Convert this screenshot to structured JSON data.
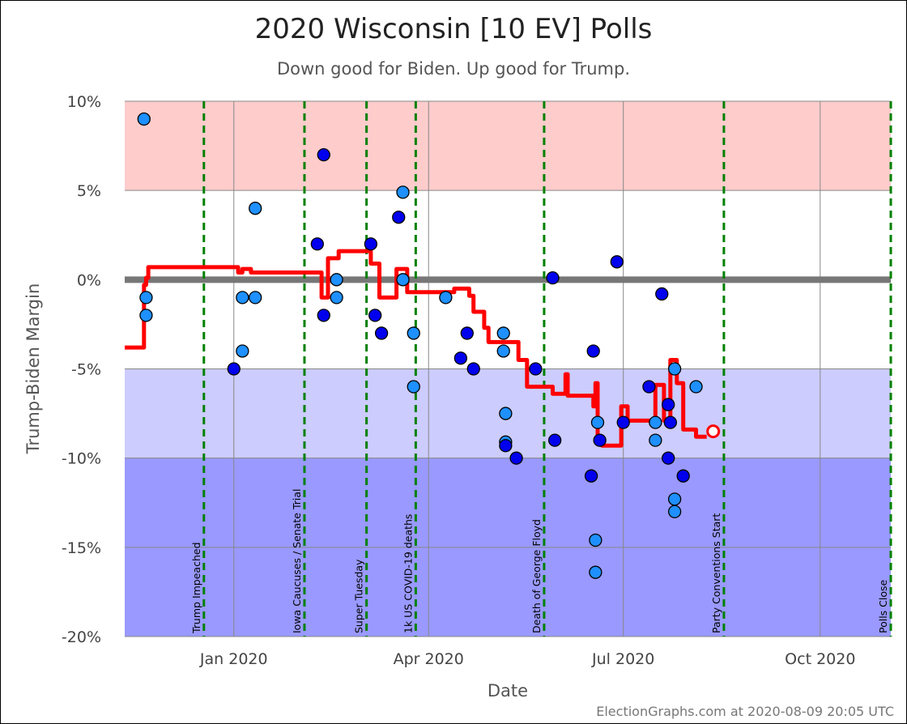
{
  "chart_data": {
    "type": "scatter",
    "title": "2020 Wisconsin [10 EV] Polls",
    "subtitle": "Down good for Biden. Up good for Trump.",
    "xlabel": "Date",
    "ylabel": "Trump-Biden Margin",
    "credit": "ElectionGraphs.com at 2020-08-09 20:05 UTC",
    "xlim": [
      "2019-11-11",
      "2020-11-03"
    ],
    "ylim": [
      -20,
      10
    ],
    "x_ticks": [
      {
        "date": "2020-01-01",
        "label": "Jan 2020"
      },
      {
        "date": "2020-04-01",
        "label": "Apr 2020"
      },
      {
        "date": "2020-07-01",
        "label": "Jul 2020"
      },
      {
        "date": "2020-10-01",
        "label": "Oct 2020"
      }
    ],
    "y_ticks": [
      {
        "value": 10,
        "label": "10%"
      },
      {
        "value": 5,
        "label": "5%"
      },
      {
        "value": 0,
        "label": "0%"
      },
      {
        "value": -5,
        "label": "-5%"
      },
      {
        "value": -10,
        "label": "-10%"
      },
      {
        "value": -15,
        "label": "-15%"
      },
      {
        "value": -20,
        "label": "-20%"
      }
    ],
    "bands": [
      {
        "from": 5,
        "to": 10,
        "color": "#ffcccc"
      },
      {
        "from": -5,
        "to": 5,
        "color": "#ffffff"
      },
      {
        "from": -10,
        "to": -5,
        "color": "#ccccff"
      },
      {
        "from": -20,
        "to": -10,
        "color": "#9999ff"
      }
    ],
    "colors": {
      "event_line": "#008000",
      "average_line": "#ff0000",
      "zero_line": "#777777",
      "poll_dark": "#0000ee",
      "poll_light": "#1e90ff",
      "grid": "#888888"
    },
    "events": [
      {
        "date": "2019-12-18",
        "label": "Trump Impeached"
      },
      {
        "date": "2020-02-03",
        "label": "Iowa Caucuses / Senate Trial"
      },
      {
        "date": "2020-03-03",
        "label": "Super Tuesday"
      },
      {
        "date": "2020-03-26",
        "label": "1k US COVID-19 deaths"
      },
      {
        "date": "2020-05-25",
        "label": "Death of George Floyd"
      },
      {
        "date": "2020-08-17",
        "label": "Party Conventions Start"
      },
      {
        "date": "2020-11-03",
        "label": "Polls Close"
      }
    ],
    "series": [
      {
        "name": "Trump-Biden Margin average",
        "type": "step",
        "points": [
          [
            "2019-11-11",
            -3.8
          ],
          [
            "2019-11-20",
            -3.8
          ],
          [
            "2019-11-20",
            -0.3
          ],
          [
            "2019-11-21",
            -0.3
          ],
          [
            "2019-11-21",
            0.1
          ],
          [
            "2019-11-22",
            0.1
          ],
          [
            "2019-11-22",
            0.7
          ],
          [
            "2020-01-03",
            0.7
          ],
          [
            "2020-01-03",
            0.4
          ],
          [
            "2020-01-05",
            0.4
          ],
          [
            "2020-01-05",
            0.6
          ],
          [
            "2020-01-09",
            0.6
          ],
          [
            "2020-01-09",
            0.4
          ],
          [
            "2020-02-11",
            0.4
          ],
          [
            "2020-02-11",
            -1.0
          ],
          [
            "2020-02-14",
            -1.0
          ],
          [
            "2020-02-14",
            1.2
          ],
          [
            "2020-02-19",
            1.2
          ],
          [
            "2020-02-19",
            1.6
          ],
          [
            "2020-03-05",
            1.6
          ],
          [
            "2020-03-05",
            0.9
          ],
          [
            "2020-03-09",
            0.9
          ],
          [
            "2020-03-09",
            -1.0
          ],
          [
            "2020-03-17",
            -1.0
          ],
          [
            "2020-03-17",
            0.6
          ],
          [
            "2020-03-22",
            0.6
          ],
          [
            "2020-03-22",
            -0.7
          ],
          [
            "2020-04-13",
            -0.7
          ],
          [
            "2020-04-13",
            -0.5
          ],
          [
            "2020-04-20",
            -0.5
          ],
          [
            "2020-04-20",
            -0.9
          ],
          [
            "2020-04-22",
            -0.9
          ],
          [
            "2020-04-22",
            -1.8
          ],
          [
            "2020-04-27",
            -1.8
          ],
          [
            "2020-04-27",
            -2.7
          ],
          [
            "2020-04-29",
            -2.7
          ],
          [
            "2020-04-29",
            -3.5
          ],
          [
            "2020-05-13",
            -3.5
          ],
          [
            "2020-05-13",
            -4.5
          ],
          [
            "2020-05-17",
            -4.5
          ],
          [
            "2020-05-17",
            -6.0
          ],
          [
            "2020-05-29",
            -6.0
          ],
          [
            "2020-05-29",
            -6.4
          ],
          [
            "2020-06-04",
            -6.4
          ],
          [
            "2020-06-04",
            -5.3
          ],
          [
            "2020-06-05",
            -5.3
          ],
          [
            "2020-06-05",
            -6.5
          ],
          [
            "2020-06-17",
            -6.5
          ],
          [
            "2020-06-17",
            -7.1
          ],
          [
            "2020-06-18",
            -7.1
          ],
          [
            "2020-06-18",
            -5.8
          ],
          [
            "2020-06-19",
            -5.8
          ],
          [
            "2020-06-19",
            -9.0
          ],
          [
            "2020-06-21",
            -9.0
          ],
          [
            "2020-06-21",
            -9.3
          ],
          [
            "2020-06-30",
            -9.3
          ],
          [
            "2020-06-30",
            -7.1
          ],
          [
            "2020-07-03",
            -7.1
          ],
          [
            "2020-07-03",
            -7.9
          ],
          [
            "2020-07-16",
            -7.9
          ],
          [
            "2020-07-16",
            -5.9
          ],
          [
            "2020-07-20",
            -5.9
          ],
          [
            "2020-07-20",
            -7.9
          ],
          [
            "2020-07-23",
            -7.9
          ],
          [
            "2020-07-23",
            -4.5
          ],
          [
            "2020-07-26",
            -4.5
          ],
          [
            "2020-07-26",
            -5.8
          ],
          [
            "2020-07-29",
            -5.8
          ],
          [
            "2020-07-29",
            -8.4
          ],
          [
            "2020-08-04",
            -8.4
          ],
          [
            "2020-08-04",
            -8.8
          ],
          [
            "2020-08-09",
            -8.8
          ]
        ],
        "current": [
          "2020-08-12",
          -8.5
        ]
      },
      {
        "name": "Polls",
        "type": "scatter",
        "points": [
          {
            "date": "2019-11-20",
            "value": 9,
            "shade": "light"
          },
          {
            "date": "2019-11-21",
            "value": -1,
            "shade": "light"
          },
          {
            "date": "2019-11-21",
            "value": -2,
            "shade": "light"
          },
          {
            "date": "2020-01-01",
            "value": -5,
            "shade": "dark"
          },
          {
            "date": "2020-01-05",
            "value": -1,
            "shade": "light"
          },
          {
            "date": "2020-01-05",
            "value": -4,
            "shade": "light"
          },
          {
            "date": "2020-01-11",
            "value": -1,
            "shade": "light"
          },
          {
            "date": "2020-01-11",
            "value": 4,
            "shade": "light"
          },
          {
            "date": "2020-02-09",
            "value": 2,
            "shade": "dark"
          },
          {
            "date": "2020-02-12",
            "value": 7,
            "shade": "dark"
          },
          {
            "date": "2020-02-12",
            "value": -2,
            "shade": "dark"
          },
          {
            "date": "2020-02-18",
            "value": 0,
            "shade": "light"
          },
          {
            "date": "2020-02-18",
            "value": -1,
            "shade": "light"
          },
          {
            "date": "2020-03-05",
            "value": 2,
            "shade": "dark"
          },
          {
            "date": "2020-03-07",
            "value": -2,
            "shade": "dark"
          },
          {
            "date": "2020-03-10",
            "value": -3,
            "shade": "dark"
          },
          {
            "date": "2020-03-18",
            "value": 3.5,
            "shade": "dark"
          },
          {
            "date": "2020-03-20",
            "value": 4.9,
            "shade": "light"
          },
          {
            "date": "2020-03-20",
            "value": 0,
            "shade": "light"
          },
          {
            "date": "2020-03-25",
            "value": -3,
            "shade": "light"
          },
          {
            "date": "2020-03-25",
            "value": -6,
            "shade": "light"
          },
          {
            "date": "2020-04-09",
            "value": -1,
            "shade": "light"
          },
          {
            "date": "2020-04-16",
            "value": -4.4,
            "shade": "dark"
          },
          {
            "date": "2020-04-19",
            "value": -3,
            "shade": "dark"
          },
          {
            "date": "2020-04-22",
            "value": -5,
            "shade": "dark"
          },
          {
            "date": "2020-05-06",
            "value": -3,
            "shade": "light"
          },
          {
            "date": "2020-05-06",
            "value": -4,
            "shade": "light"
          },
          {
            "date": "2020-05-07",
            "value": -7.5,
            "shade": "light"
          },
          {
            "date": "2020-05-07",
            "value": -9.1,
            "shade": "light"
          },
          {
            "date": "2020-05-07",
            "value": -9.3,
            "shade": "dark"
          },
          {
            "date": "2020-05-12",
            "value": -10,
            "shade": "dark"
          },
          {
            "date": "2020-05-21",
            "value": -5,
            "shade": "dark"
          },
          {
            "date": "2020-05-29",
            "value": 0.1,
            "shade": "dark"
          },
          {
            "date": "2020-05-30",
            "value": -9,
            "shade": "dark"
          },
          {
            "date": "2020-06-16",
            "value": -11,
            "shade": "dark"
          },
          {
            "date": "2020-06-17",
            "value": -4,
            "shade": "dark"
          },
          {
            "date": "2020-06-18",
            "value": -14.6,
            "shade": "light"
          },
          {
            "date": "2020-06-18",
            "value": -16.4,
            "shade": "light"
          },
          {
            "date": "2020-06-19",
            "value": -8,
            "shade": "light"
          },
          {
            "date": "2020-06-20",
            "value": -9,
            "shade": "dark"
          },
          {
            "date": "2020-06-28",
            "value": 1,
            "shade": "dark"
          },
          {
            "date": "2020-07-01",
            "value": -8,
            "shade": "dark"
          },
          {
            "date": "2020-07-13",
            "value": -6,
            "shade": "dark"
          },
          {
            "date": "2020-07-16",
            "value": -8,
            "shade": "light"
          },
          {
            "date": "2020-07-16",
            "value": -9,
            "shade": "light"
          },
          {
            "date": "2020-07-19",
            "value": -0.8,
            "shade": "dark"
          },
          {
            "date": "2020-07-22",
            "value": -10,
            "shade": "dark"
          },
          {
            "date": "2020-07-22",
            "value": -7,
            "shade": "dark"
          },
          {
            "date": "2020-07-23",
            "value": -8,
            "shade": "dark"
          },
          {
            "date": "2020-07-25",
            "value": -12.3,
            "shade": "light"
          },
          {
            "date": "2020-07-25",
            "value": -13,
            "shade": "light"
          },
          {
            "date": "2020-07-25",
            "value": -5,
            "shade": "light"
          },
          {
            "date": "2020-07-29",
            "value": -11,
            "shade": "dark"
          },
          {
            "date": "2020-08-04",
            "value": -6,
            "shade": "light"
          }
        ]
      }
    ]
  }
}
